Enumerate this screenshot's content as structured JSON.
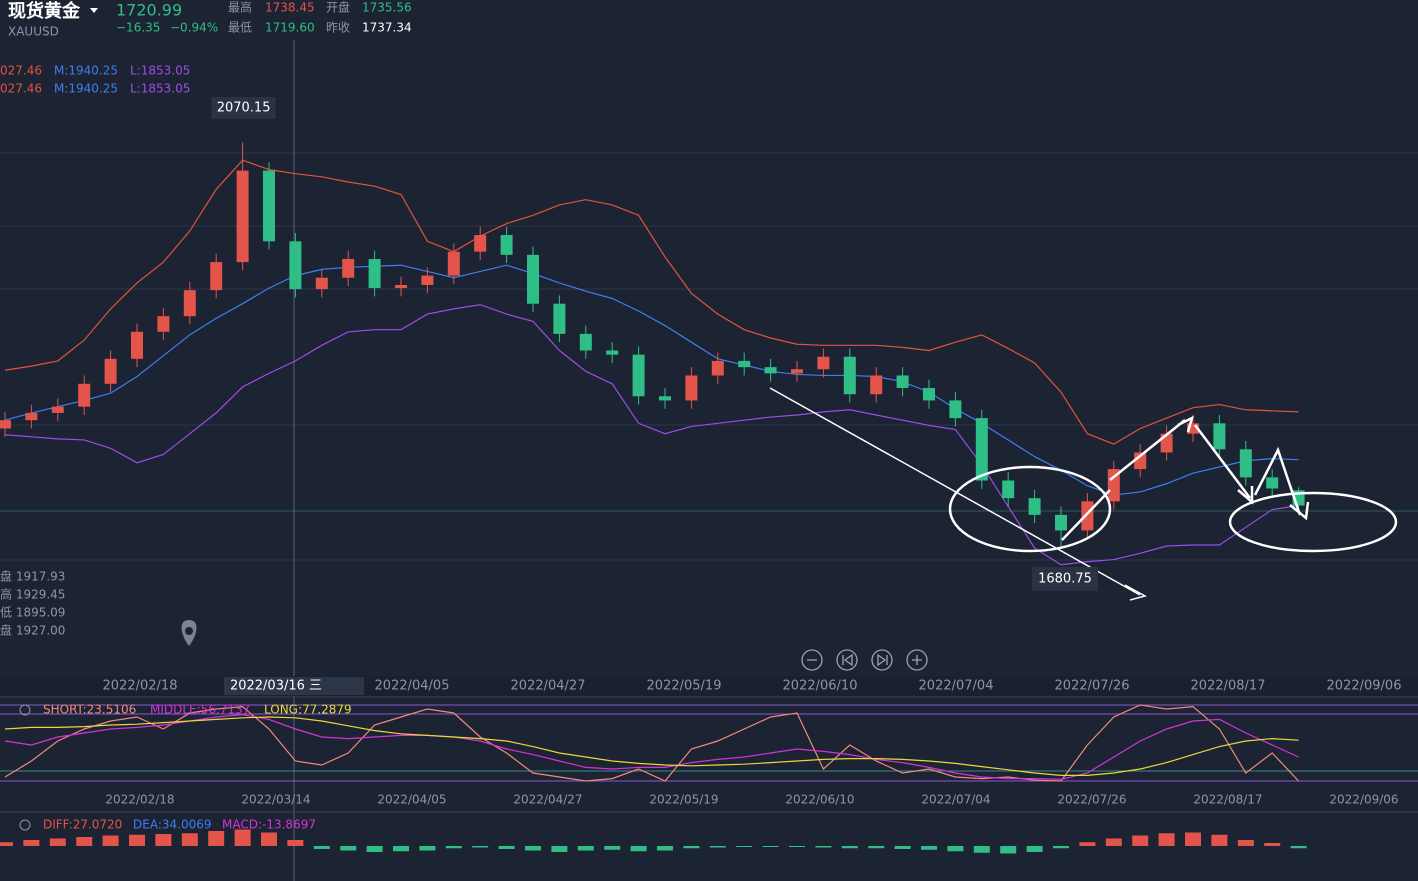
{
  "header": {
    "title": "现货黄金",
    "symbol": "XAUUSD",
    "price": "1720.99",
    "change": "−16.35",
    "change_pct": "−0.94%",
    "stats": [
      [
        "最高",
        "1738.45"
      ],
      [
        "开盘",
        "1735.56"
      ],
      [
        "最低",
        "1719.60"
      ],
      [
        "昨收",
        "1737.34"
      ]
    ]
  },
  "boll_legend": [
    [
      "027.46",
      "M:1940.25",
      "L:1853.05"
    ],
    [
      "027.46",
      "M:1940.25",
      "L:1853.05"
    ]
  ],
  "info": [
    "盘 1917.93",
    "高 1929.45",
    "低 1895.09",
    "盘 1927.00"
  ],
  "dates_main": [
    "2022/02/18",
    "2022/03/16 三",
    "2022/04/05",
    "2022/04/27",
    "2022/05/19",
    "2022/06/10",
    "2022/07/04",
    "2022/07/26",
    "2022/08/17",
    "2022/09/06"
  ],
  "dates_osc": [
    "2022/02/18",
    "2022/03/14",
    "2022/04/05",
    "2022/04/27",
    "2022/05/19",
    "2022/06/10",
    "2022/07/04",
    "2022/07/26",
    "2022/08/17",
    "2022/09/06"
  ],
  "chart_data": [
    {
      "type": "candlestick",
      "ylim": [
        1558,
        2207
      ],
      "up_color": "#e3544a",
      "down_color": "#2fbf86",
      "open": [
        1795,
        1803,
        1810,
        1816,
        1838,
        1862,
        1888,
        1903,
        1928,
        1955,
        2043,
        1975,
        1929,
        1940,
        1958,
        1930,
        1933,
        1942,
        1965,
        1981,
        1962,
        1915,
        1886,
        1870,
        1866,
        1826,
        1822,
        1846,
        1860,
        1854,
        1848,
        1852,
        1864,
        1828,
        1846,
        1834,
        1822,
        1805,
        1745,
        1728,
        1712,
        1697,
        1725,
        1756,
        1772,
        1790,
        1800,
        1775,
        1748,
        1735.56
      ],
      "high": [
        1811,
        1818,
        1824,
        1846,
        1870,
        1896,
        1911,
        1936,
        1963,
        2070.15,
        2051,
        1983,
        1948,
        1966,
        1966,
        1941,
        1950,
        1973,
        1989,
        1989,
        1970,
        1923,
        1894,
        1878,
        1874,
        1834,
        1854,
        1868,
        1868,
        1862,
        1860,
        1872,
        1872,
        1854,
        1854,
        1842,
        1830,
        1813,
        1753,
        1736,
        1720,
        1733,
        1764,
        1780,
        1798,
        1808,
        1808,
        1783,
        1756,
        1738.45
      ],
      "low": [
        1787,
        1795,
        1802,
        1808,
        1830,
        1854,
        1880,
        1895,
        1920,
        1947,
        1967,
        1921,
        1921,
        1932,
        1922,
        1922,
        1925,
        1934,
        1957,
        1954,
        1907,
        1878,
        1862,
        1858,
        1818,
        1814,
        1814,
        1838,
        1846,
        1840,
        1840,
        1844,
        1820,
        1820,
        1826,
        1814,
        1797,
        1737,
        1720,
        1704,
        1680.75,
        1689,
        1717,
        1748,
        1764,
        1782,
        1767,
        1740,
        1729,
        1719.6
      ],
      "close": [
        1803,
        1810,
        1816,
        1838,
        1862,
        1888,
        1903,
        1928,
        1955,
        2043,
        1975,
        1929,
        1940,
        1958,
        1930,
        1933,
        1942,
        1965,
        1981,
        1962,
        1915,
        1886,
        1870,
        1866,
        1826,
        1822,
        1846,
        1860,
        1854,
        1848,
        1852,
        1864,
        1828,
        1846,
        1834,
        1822,
        1805,
        1745,
        1728,
        1712,
        1697,
        1725,
        1756,
        1772,
        1790,
        1800,
        1775,
        1748,
        1737.34,
        1720.99
      ],
      "series": [
        {
          "color": "#e0533c",
          "values": [
            1851,
            1855,
            1860,
            1880,
            1910,
            1935,
            1955,
            1985,
            2025,
            2053,
            2044,
            2040,
            2037,
            2032,
            2028,
            2020,
            1975,
            1965,
            1980,
            1992,
            2000,
            2010,
            2015,
            2010,
            2000,
            1960,
            1925,
            1905,
            1890,
            1882,
            1876,
            1875,
            1875,
            1875,
            1873,
            1870,
            1878,
            1885,
            1872,
            1858,
            1830,
            1790,
            1780,
            1795,
            1805,
            1815,
            1818,
            1813,
            1812,
            1811
          ]
        },
        {
          "color": "#3d7ef0",
          "values": [
            1803,
            1810,
            1816,
            1822,
            1829,
            1845,
            1865,
            1885,
            1901,
            1915,
            1930,
            1942,
            1948,
            1950,
            1951,
            1952,
            1946,
            1940,
            1946,
            1952,
            1944,
            1935,
            1927,
            1920,
            1908,
            1894,
            1878,
            1862,
            1856,
            1850,
            1847,
            1846,
            1846,
            1845,
            1840,
            1830,
            1814,
            1800,
            1784,
            1768,
            1755,
            1740,
            1731,
            1734,
            1742,
            1752,
            1758,
            1764,
            1766,
            1765
          ]
        },
        {
          "color": "#9b4de8",
          "values": [
            1789,
            1787,
            1785,
            1784,
            1776,
            1762,
            1770,
            1790,
            1810,
            1835,
            1848,
            1860,
            1875,
            1888,
            1890,
            1890,
            1905,
            1910,
            1914,
            1905,
            1898,
            1870,
            1850,
            1838,
            1800,
            1790,
            1797,
            1800,
            1803,
            1806,
            1808,
            1811,
            1813,
            1808,
            1803,
            1798,
            1794,
            1760,
            1720,
            1680,
            1664,
            1667,
            1669,
            1675,
            1682,
            1683,
            1683,
            1700,
            1717,
            1721
          ]
        }
      ]
    },
    {
      "type": "line",
      "ylim": [
        0,
        100
      ],
      "legend": [
        "SHORT:23.5106",
        "MIDDLE:56.7137",
        "LONG:77.2879"
      ],
      "series": [
        {
          "color": "#f08a7a",
          "values": [
            10,
            30,
            55,
            70,
            80,
            85,
            70,
            90,
            95,
            98,
            70,
            30,
            25,
            40,
            75,
            85,
            95,
            90,
            60,
            40,
            15,
            10,
            5,
            8,
            20,
            5,
            45,
            55,
            70,
            85,
            90,
            20,
            50,
            30,
            15,
            20,
            10,
            8,
            10,
            6,
            5,
            50,
            85,
            100,
            95,
            98,
            70,
            15,
            40,
            5
          ]
        },
        {
          "color": "#d633d6",
          "values": [
            55,
            50,
            60,
            65,
            70,
            72,
            75,
            80,
            85,
            88,
            82,
            70,
            60,
            58,
            60,
            62,
            62,
            60,
            55,
            45,
            38,
            30,
            22,
            20,
            22,
            22,
            28,
            32,
            35,
            40,
            45,
            42,
            38,
            32,
            28,
            22,
            15,
            10,
            8,
            8,
            7,
            15,
            35,
            55,
            70,
            80,
            82,
            65,
            50,
            35
          ]
        },
        {
          "color": "#e8d93a",
          "values": [
            70,
            72,
            72,
            73,
            75,
            76,
            78,
            80,
            82,
            84,
            85,
            84,
            80,
            74,
            68,
            64,
            62,
            60,
            58,
            55,
            48,
            40,
            35,
            30,
            27,
            25,
            24,
            25,
            26,
            28,
            30,
            32,
            33,
            33,
            32,
            30,
            27,
            23,
            19,
            15,
            12,
            12,
            15,
            20,
            28,
            38,
            48,
            55,
            58,
            56
          ]
        }
      ]
    },
    {
      "type": "bar",
      "ylim": [
        -40,
        40
      ],
      "legend": [
        "DIFF:27.0720",
        "DEA:34.0069",
        "MACD:-13.8697"
      ],
      "up_color": "#e3544a",
      "down_color": "#2fbf86",
      "values": [
        5,
        8,
        10,
        12,
        14,
        15,
        16,
        17,
        20,
        22,
        18,
        8,
        -4,
        -6,
        -8,
        -7,
        -6,
        -3,
        -2,
        -4,
        -6,
        -8,
        -6,
        -5,
        -7,
        -6,
        -3,
        -2,
        -1,
        -1,
        -1,
        -2,
        -3,
        -3,
        -4,
        -5,
        -7,
        -9,
        -10,
        -8,
        -3,
        5,
        10,
        14,
        17,
        18,
        15,
        8,
        4,
        -3
      ]
    }
  ]
}
